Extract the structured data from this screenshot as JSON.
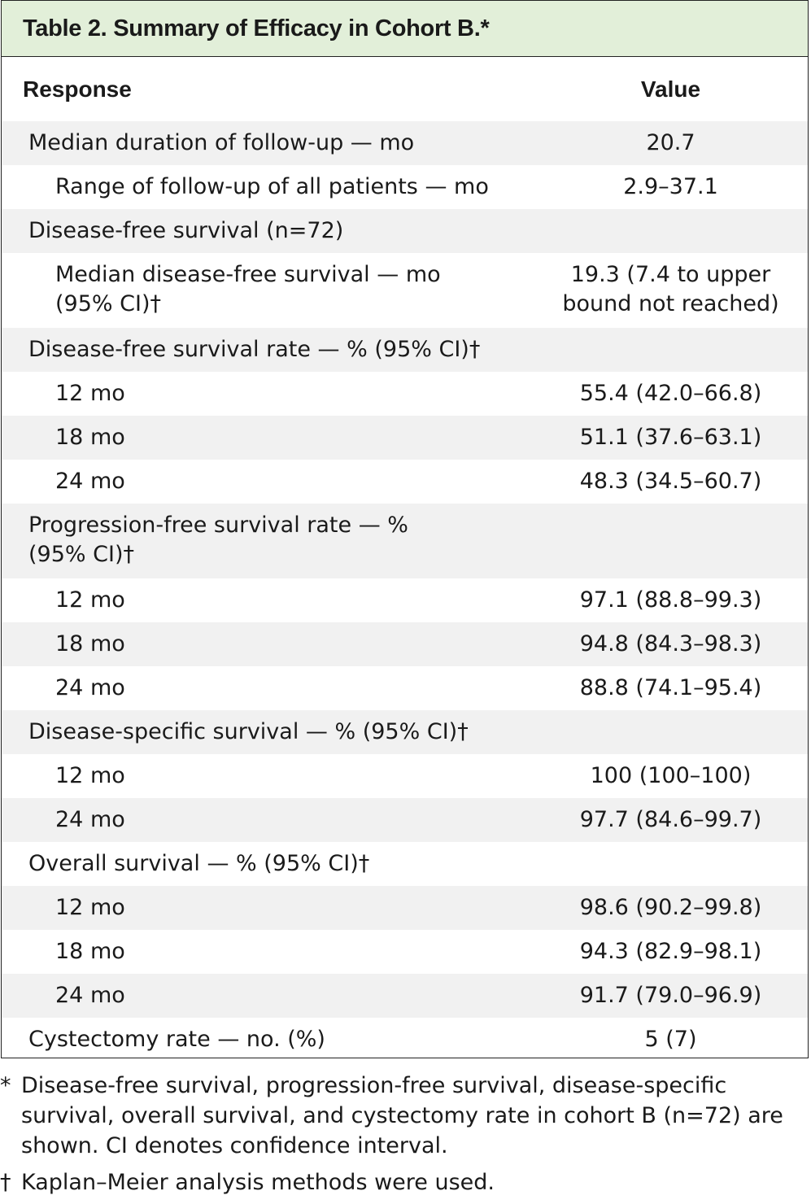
{
  "title": "Table 2. Summary of Efficacy in Cohort B.*",
  "header": {
    "response": "Response",
    "value": "Value"
  },
  "rows": [
    {
      "label": "Median duration of follow-up — mo",
      "value": "20.7",
      "indent": 0,
      "h": 54
    },
    {
      "label": "Range of follow-up of all patients — mo",
      "value": "2.9–37.1",
      "indent": 1,
      "h": 54
    },
    {
      "label": "Disease-free survival (n=72)",
      "value": "",
      "indent": 0,
      "h": 54
    },
    {
      "label": "Median disease-free survival — mo\n   (95% CI)†",
      "value": "19.3 (7.4 to upper\nbound not reached)",
      "indent": 1,
      "h": 92
    },
    {
      "label": "Disease-free survival rate — % (95% CI)†",
      "value": "",
      "indent": 0,
      "h": 54
    },
    {
      "label": "12 mo",
      "value": "55.4 (42.0–66.8)",
      "indent": 1,
      "h": 54
    },
    {
      "label": "18 mo",
      "value": "51.1 (37.6–63.1)",
      "indent": 1,
      "h": 54
    },
    {
      "label": "24 mo",
      "value": "48.3 (34.5–60.7)",
      "indent": 1,
      "h": 54
    },
    {
      "label": "Progression-free survival rate — %\n   (95% CI)†",
      "value": "",
      "indent": 0,
      "h": 92
    },
    {
      "label": "12 mo",
      "value": "97.1 (88.8–99.3)",
      "indent": 1,
      "h": 54
    },
    {
      "label": "18 mo",
      "value": "94.8 (84.3–98.3)",
      "indent": 1,
      "h": 54
    },
    {
      "label": "24 mo",
      "value": "88.8 (74.1–95.4)",
      "indent": 1,
      "h": 54
    },
    {
      "label": "Disease-specific survival — % (95% CI)†",
      "value": "",
      "indent": 0,
      "h": 54
    },
    {
      "label": "12 mo",
      "value": "100 (100–100)",
      "indent": 1,
      "h": 54
    },
    {
      "label": "24 mo",
      "value": "97.7 (84.6–99.7)",
      "indent": 1,
      "h": 54
    },
    {
      "label": "Overall survival — % (95% CI)†",
      "value": "",
      "indent": 0,
      "h": 54
    },
    {
      "label": "12 mo",
      "value": "98.6 (90.2–99.8)",
      "indent": 1,
      "h": 54
    },
    {
      "label": "18 mo",
      "value": "94.3 (82.9–98.1)",
      "indent": 1,
      "h": 54
    },
    {
      "label": "24 mo",
      "value": "91.7 (79.0–96.9)",
      "indent": 1,
      "h": 54
    },
    {
      "label": "Cystectomy rate — no. (%)",
      "value": "5 (7)",
      "indent": 0,
      "h": 54
    }
  ],
  "footnotes": [
    {
      "symbol": "*",
      "text": "Disease-free survival, progression-free survival, disease-specific survival, overall survival, and cystectomy rate in cohort B (n=72) are shown. CI denotes confidence interval."
    },
    {
      "symbol": "†",
      "text": "Kaplan–Meier analysis methods were used."
    }
  ]
}
